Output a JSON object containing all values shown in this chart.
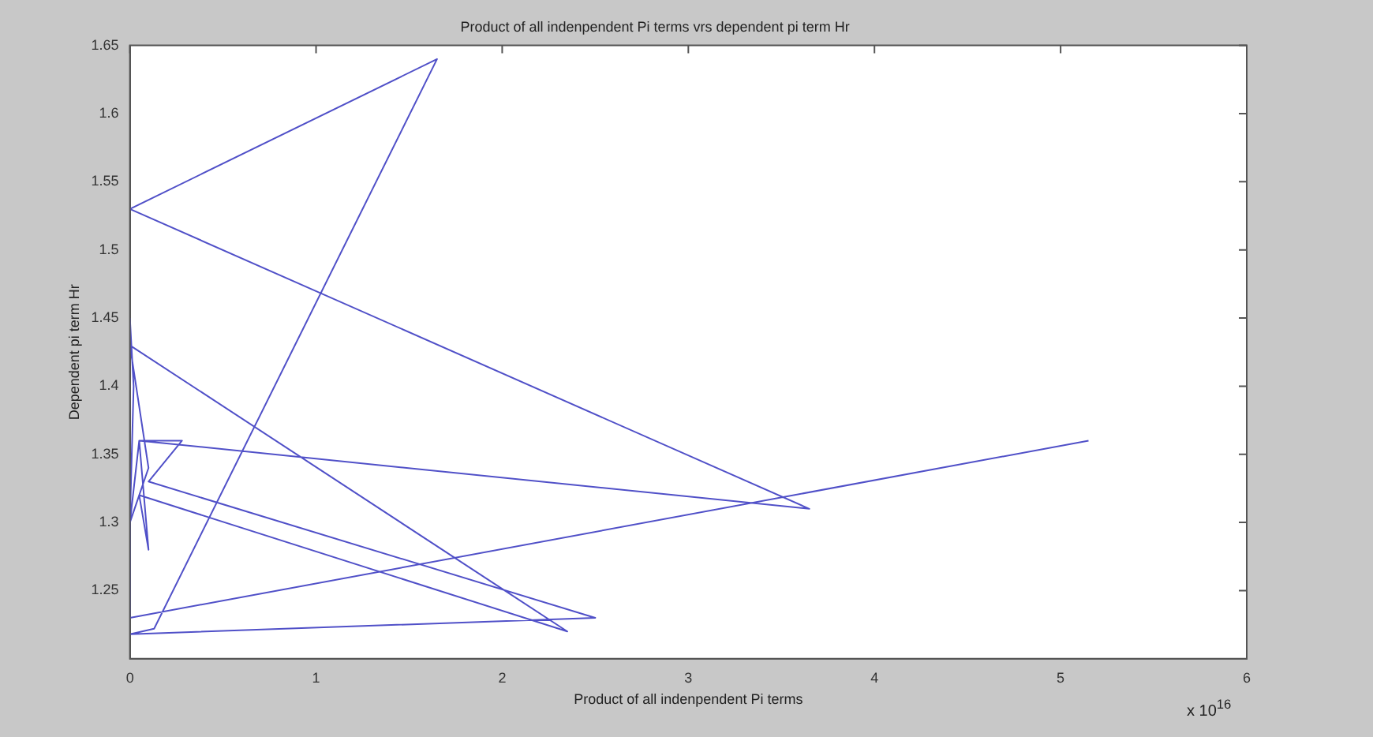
{
  "chart_data": {
    "type": "line",
    "title": "Product of all indenpendent Pi terms vrs dependent pi term Hr",
    "xlabel": "Product of all indenpendent Pi terms",
    "ylabel": "Dependent pi term Hr",
    "annotations": [
      "x 10$^{16}$"
    ],
    "x": [
      0,
      0.02,
      0,
      0.05,
      0.28,
      0.1,
      2.5,
      0,
      0.13,
      1.65,
      0,
      3.65,
      0.05,
      0.1,
      0.05,
      2.35,
      0,
      0.1,
      0,
      0,
      5.15
    ],
    "series": [
      {
        "color": "#5050c8",
        "values": [
          1.45,
          1.4,
          1.3,
          1.36,
          1.36,
          1.33,
          1.23,
          1.218,
          1.222,
          1.64,
          1.53,
          1.31,
          1.36,
          1.28,
          1.32,
          1.22,
          1.43,
          1.34,
          1.3,
          1.23,
          1.36
        ]
      }
    ],
    "xlim": [
      0,
      6
    ],
    "xticks": [
      0,
      1,
      2,
      3,
      4,
      5,
      6
    ],
    "ylim": [
      1.2,
      1.65
    ],
    "yticks": [
      1.25,
      1.3,
      1.35,
      1.4,
      1.45,
      1.5,
      1.55,
      1.6,
      1.65
    ],
    "grid": false,
    "legend": false,
    "marker": "none",
    "line_style": "solid"
  }
}
